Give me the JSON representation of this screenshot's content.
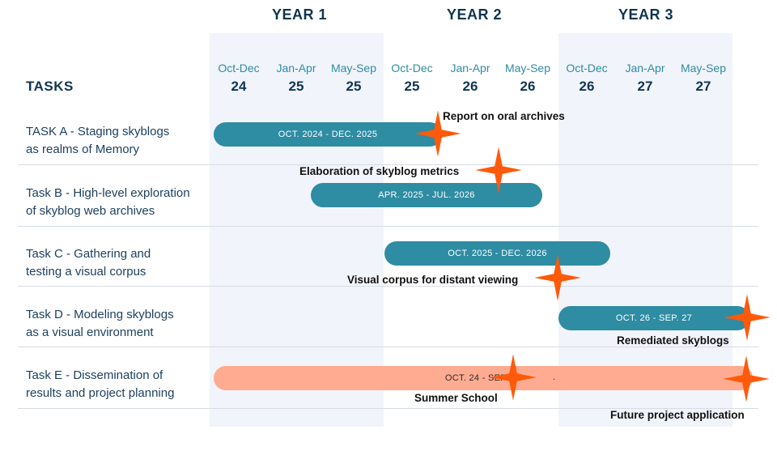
{
  "header": {
    "years": [
      "YEAR 1",
      "YEAR 2",
      "YEAR 3"
    ],
    "periods": [
      {
        "month": "Oct-Dec",
        "year": "24"
      },
      {
        "month": "Jan-Apr",
        "year": "25"
      },
      {
        "month": "May-Sep",
        "year": "25"
      },
      {
        "month": "Oct-Dec",
        "year": "25"
      },
      {
        "month": "Jan-Apr",
        "year": "26"
      },
      {
        "month": "May-Sep",
        "year": "26"
      },
      {
        "month": "Oct-Dec",
        "year": "26"
      },
      {
        "month": "Jan-Apr",
        "year": "27"
      },
      {
        "month": "May-Sep",
        "year": "27"
      }
    ],
    "tasks_title": "TASKS"
  },
  "tasks": [
    {
      "label_line1": "TASK A - Staging skyblogs",
      "label_line2": "as realms of Memory",
      "bar_label": "OCT. 2024 - DEC. 2025"
    },
    {
      "label_line1": "Task B - High-level exploration",
      "label_line2": "of skyblog web archives",
      "bar_label": "APR. 2025 - JUL. 2026"
    },
    {
      "label_line1": "Task C - Gathering and",
      "label_line2": "testing a visual corpus",
      "bar_label": "OCT. 2025 - DEC. 2026"
    },
    {
      "label_line1": "Task D - Modeling skyblogs",
      "label_line2": "as a visual environment",
      "bar_label": "OCT. 26 - SEP. 27"
    },
    {
      "label_line1": "Task E - Dissemination of",
      "label_line2": "results and project planning",
      "bar_label": "OCT. 24 - SEP. 27",
      "bar_extra": "."
    }
  ],
  "milestones": [
    "Report on oral archives",
    "Elaboration of skyblog metrics",
    "Visual corpus for distant viewing",
    "Remediated skyblogs",
    "Summer School",
    "Future project application"
  ],
  "colors": {
    "teal": "#2e8ca3",
    "salmon": "#ffab91",
    "star": "#ff5a0a",
    "navy": "#0f3550",
    "column_shade": "#f1f4fa"
  }
}
